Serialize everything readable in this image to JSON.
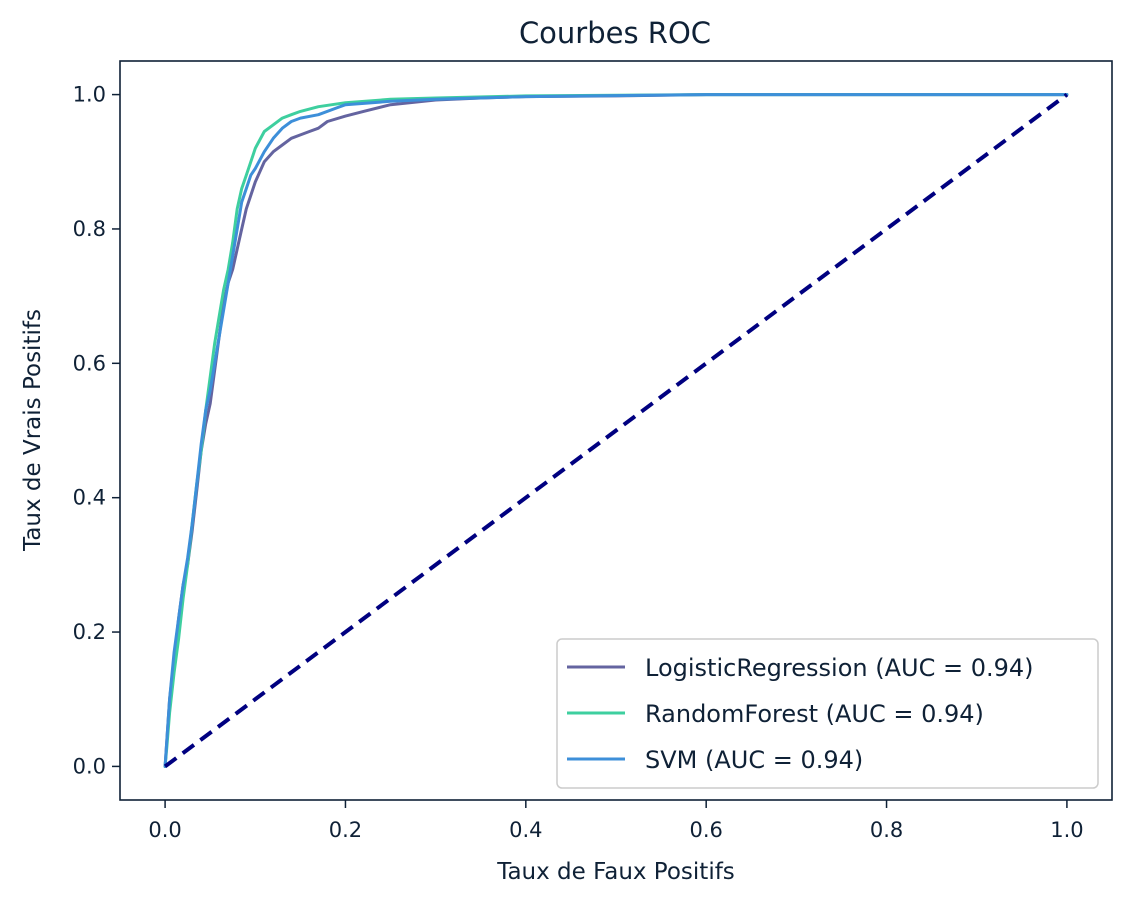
{
  "chart_data": {
    "type": "line",
    "title": "Courbes ROC",
    "xlabel": "Taux de Faux Positifs",
    "ylabel": "Taux de Vrais Positifs",
    "xlim": [
      -0.05,
      1.05
    ],
    "ylim": [
      -0.05,
      1.05
    ],
    "xticks": [
      0.0,
      0.2,
      0.4,
      0.6,
      0.8,
      1.0
    ],
    "yticks": [
      0.0,
      0.2,
      0.4,
      0.6,
      0.8,
      1.0
    ],
    "xtick_labels": [
      "0.0",
      "0.2",
      "0.4",
      "0.6",
      "0.8",
      "1.0"
    ],
    "ytick_labels": [
      "0.0",
      "0.2",
      "0.4",
      "0.6",
      "0.8",
      "1.0"
    ],
    "grid": false,
    "legend_position": "lower-right",
    "series": [
      {
        "name": "LogisticRegression (AUC = 0.94)",
        "color": "#6464a0",
        "x": [
          0.0,
          0.002,
          0.005,
          0.01,
          0.015,
          0.02,
          0.025,
          0.03,
          0.035,
          0.04,
          0.045,
          0.05,
          0.055,
          0.06,
          0.065,
          0.07,
          0.075,
          0.08,
          0.085,
          0.09,
          0.095,
          0.1,
          0.11,
          0.12,
          0.13,
          0.14,
          0.15,
          0.16,
          0.17,
          0.18,
          0.2,
          0.22,
          0.25,
          0.3,
          0.35,
          0.4,
          0.5,
          0.6,
          0.8,
          1.0
        ],
        "y": [
          0.0,
          0.04,
          0.1,
          0.16,
          0.22,
          0.27,
          0.3,
          0.35,
          0.41,
          0.47,
          0.51,
          0.54,
          0.59,
          0.64,
          0.69,
          0.72,
          0.74,
          0.77,
          0.8,
          0.83,
          0.85,
          0.87,
          0.9,
          0.915,
          0.925,
          0.935,
          0.94,
          0.945,
          0.95,
          0.96,
          0.968,
          0.975,
          0.985,
          0.992,
          0.995,
          0.997,
          0.998,
          1.0,
          1.0,
          1.0
        ]
      },
      {
        "name": "RandomForest (AUC = 0.94)",
        "color": "#3ecf9f",
        "x": [
          0.0,
          0.002,
          0.005,
          0.01,
          0.015,
          0.02,
          0.025,
          0.03,
          0.035,
          0.04,
          0.045,
          0.05,
          0.055,
          0.06,
          0.065,
          0.07,
          0.075,
          0.08,
          0.085,
          0.09,
          0.095,
          0.1,
          0.11,
          0.12,
          0.13,
          0.14,
          0.15,
          0.17,
          0.2,
          0.25,
          0.3,
          0.4,
          0.6,
          0.8,
          1.0
        ],
        "y": [
          0.0,
          0.03,
          0.08,
          0.14,
          0.19,
          0.25,
          0.3,
          0.36,
          0.42,
          0.47,
          0.53,
          0.58,
          0.63,
          0.67,
          0.71,
          0.74,
          0.78,
          0.83,
          0.86,
          0.88,
          0.9,
          0.92,
          0.945,
          0.955,
          0.965,
          0.97,
          0.975,
          0.982,
          0.988,
          0.993,
          0.995,
          0.998,
          1.0,
          1.0,
          1.0
        ]
      },
      {
        "name": "SVM (AUC = 0.94)",
        "color": "#3d8fd9",
        "x": [
          0.0,
          0.002,
          0.005,
          0.01,
          0.015,
          0.02,
          0.025,
          0.03,
          0.035,
          0.04,
          0.045,
          0.05,
          0.055,
          0.06,
          0.065,
          0.07,
          0.075,
          0.08,
          0.085,
          0.09,
          0.095,
          0.1,
          0.11,
          0.12,
          0.13,
          0.14,
          0.15,
          0.17,
          0.19,
          0.2,
          0.25,
          0.3,
          0.4,
          0.6,
          0.8,
          1.0
        ],
        "y": [
          0.0,
          0.04,
          0.1,
          0.17,
          0.22,
          0.27,
          0.31,
          0.36,
          0.42,
          0.48,
          0.53,
          0.56,
          0.6,
          0.64,
          0.68,
          0.72,
          0.76,
          0.8,
          0.84,
          0.86,
          0.88,
          0.89,
          0.915,
          0.935,
          0.95,
          0.96,
          0.965,
          0.97,
          0.98,
          0.985,
          0.99,
          0.993,
          0.997,
          1.0,
          1.0,
          1.0
        ]
      }
    ],
    "reference_line": {
      "color": "#000080",
      "style": "dashed",
      "x": [
        0.0,
        1.0
      ],
      "y": [
        0.0,
        1.0
      ]
    }
  }
}
